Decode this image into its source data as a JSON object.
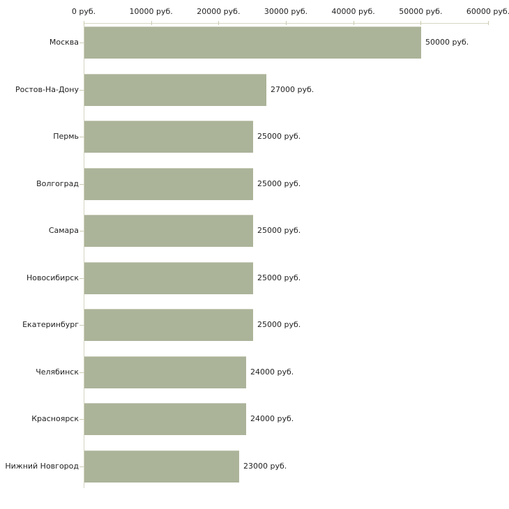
{
  "chart_data": {
    "type": "bar",
    "orientation": "horizontal",
    "title": "",
    "xlabel": "",
    "ylabel": "",
    "unit": "руб.",
    "xlim": [
      0,
      60000
    ],
    "grid": false,
    "legend": false,
    "x_ticks": [
      0,
      10000,
      20000,
      30000,
      40000,
      50000,
      60000
    ],
    "x_tick_labels": [
      "0 руб.",
      "10000 руб.",
      "20000 руб.",
      "30000 руб.",
      "40000 руб.",
      "50000 руб.",
      "60000 руб."
    ],
    "categories": [
      "Москва",
      "Ростов-На-Дону",
      "Пермь",
      "Волгоград",
      "Самара",
      "Новосибирск",
      "Екатеринбург",
      "Челябинск",
      "Красноярск",
      "Нижний Новгород"
    ],
    "values": [
      50000,
      27000,
      25000,
      25000,
      25000,
      25000,
      25000,
      24000,
      24000,
      23000
    ],
    "value_labels": [
      "50000 руб.",
      "27000 руб.",
      "25000 руб.",
      "25000 руб.",
      "25000 руб.",
      "25000 руб.",
      "25000 руб.",
      "24000 руб.",
      "24000 руб.",
      "23000 руб."
    ]
  },
  "colors": {
    "bar": "#abb399",
    "axis": "#d5d5c2",
    "tick": "#cbcbb1",
    "text": "#222222",
    "background": "#ffffff"
  }
}
